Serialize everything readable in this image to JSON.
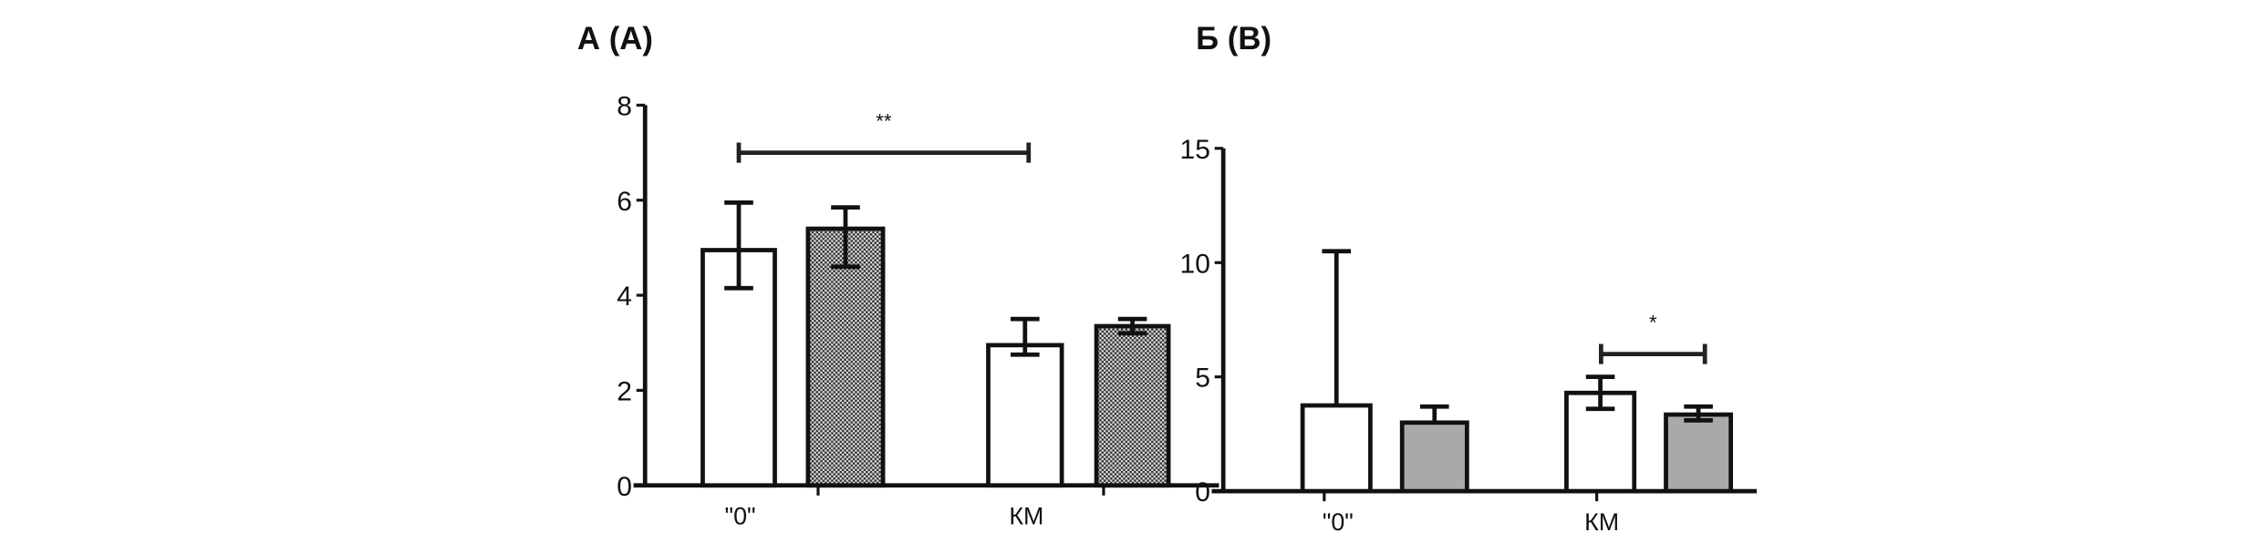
{
  "chart_data": [
    {
      "type": "bar",
      "title": "А (A)",
      "categories": [
        "\"0\"",
        "КМ"
      ],
      "ylim": [
        0,
        8
      ],
      "yticks": [
        0,
        2,
        4,
        6,
        8
      ],
      "series": [
        {
          "values": [
            4.95,
            2.95
          ],
          "err_low": [
            4.15,
            2.75
          ],
          "err_high": [
            5.95,
            3.5
          ],
          "fill": "#ffffff"
        },
        {
          "values": [
            5.4,
            3.35
          ],
          "err_low": [
            4.6,
            3.2
          ],
          "err_high": [
            5.85,
            3.5
          ],
          "fill": "hatched"
        }
      ],
      "significance": [
        {
          "label": "**",
          "from": "\"0\" series 1",
          "to": "КМ series 1",
          "y": 7.0
        }
      ],
      "grid": false
    },
    {
      "type": "bar",
      "title": "Б (B)",
      "categories": [
        "\"0\"",
        "КМ"
      ],
      "ylim": [
        0,
        15
      ],
      "yticks": [
        0,
        5,
        10,
        15
      ],
      "series": [
        {
          "values": [
            3.75,
            4.3
          ],
          "err_low": [
            3.75,
            3.6
          ],
          "err_high": [
            10.5,
            5.0
          ],
          "fill": "#ffffff"
        },
        {
          "values": [
            3.0,
            3.35
          ],
          "err_low": [
            3.0,
            3.1
          ],
          "err_high": [
            3.7,
            3.7
          ],
          "fill": "#a9a9a9"
        }
      ],
      "significance": [
        {
          "label": "*",
          "from": "КМ series 1",
          "to": "КМ series 2",
          "y": 6.0
        }
      ],
      "grid": false
    }
  ]
}
